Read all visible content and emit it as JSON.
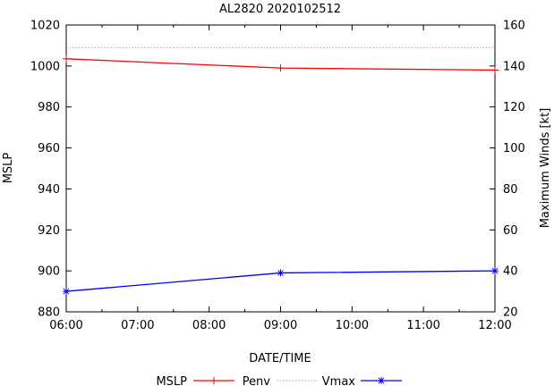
{
  "chart_data": {
    "type": "line",
    "title": "AL2820 2020102512",
    "xlabel": "DATE/TIME",
    "ylabel_left": "MSLP",
    "ylabel_right": "Maximum Winds [kt]",
    "x_ticks": [
      "06:00",
      "07:00",
      "08:00",
      "09:00",
      "10:00",
      "11:00",
      "12:00"
    ],
    "xlim": [
      "06:00",
      "12:00"
    ],
    "y_left_ticks": [
      "880",
      "900",
      "920",
      "940",
      "960",
      "980",
      "1000",
      "1020"
    ],
    "y_left_lim": [
      880,
      1020
    ],
    "y_right_ticks": [
      "20",
      "40",
      "60",
      "80",
      "100",
      "120",
      "140",
      "160"
    ],
    "y_right_lim": [
      20,
      160
    ],
    "grid": false,
    "legend_position": "bottom",
    "legend": [
      "MSLP",
      "Penv",
      "Vmax"
    ],
    "series": [
      {
        "name": "MSLP",
        "axis": "left",
        "color": "#ff0000",
        "marker": "plus",
        "line": "solid",
        "x": [
          "06:00",
          "09:00",
          "12:00"
        ],
        "values": [
          1003.5,
          999,
          998
        ]
      },
      {
        "name": "Penv",
        "axis": "left",
        "color": "#a0a0a0",
        "marker": "none",
        "line": "dotted",
        "x": [
          "06:00",
          "12:00"
        ],
        "values": [
          1009,
          1009
        ]
      },
      {
        "name": "Vmax",
        "axis": "right",
        "color": "#0000ff",
        "marker": "star",
        "line": "solid",
        "x": [
          "06:00",
          "09:00",
          "12:00"
        ],
        "values": [
          30,
          39,
          40
        ]
      }
    ]
  }
}
